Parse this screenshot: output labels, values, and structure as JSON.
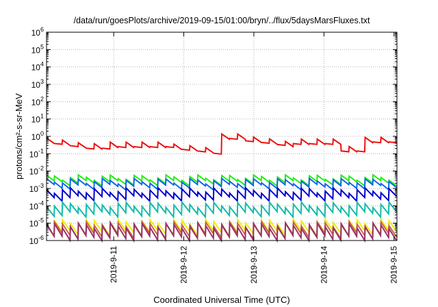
{
  "chart_data": {
    "type": "line",
    "title": "/data/run/goesPlots/archive/2019-09-15/01:00/bryn/../flux/5daysMarsFluxes.txt",
    "xlabel": "Coordinated Universal Time (UTC)",
    "ylabel": "protons/cm²-s-sr-MeV",
    "y_scale": "log",
    "ylim": [
      1e-06,
      1000000.0
    ],
    "y_ticks": [
      {
        "value": 1e-06,
        "base": "10",
        "exp": "-6"
      },
      {
        "value": 1e-05,
        "base": "10",
        "exp": "-5"
      },
      {
        "value": 0.0001,
        "base": "10",
        "exp": "-4"
      },
      {
        "value": 0.001,
        "base": "10",
        "exp": "-3"
      },
      {
        "value": 0.01,
        "base": "10",
        "exp": "-2"
      },
      {
        "value": 0.1,
        "base": "10",
        "exp": "-1"
      },
      {
        "value": 1,
        "base": "10",
        "exp": "0"
      },
      {
        "value": 10,
        "base": "10",
        "exp": "1"
      },
      {
        "value": 100,
        "base": "10",
        "exp": "2"
      },
      {
        "value": 1000,
        "base": "10",
        "exp": "3"
      },
      {
        "value": 10000,
        "base": "10",
        "exp": "4"
      },
      {
        "value": 100000,
        "base": "10",
        "exp": "5"
      },
      {
        "value": 1000000,
        "base": "10",
        "exp": "6"
      }
    ],
    "xlim": [
      "2019-09-10 01:00",
      "2019-09-15 01:00"
    ],
    "x_ticks": [
      {
        "value": "2019-09-11 00:00",
        "label": "2019-9-11"
      },
      {
        "value": "2019-09-12 00:00",
        "label": "2019-9-12"
      },
      {
        "value": "2019-09-13 00:00",
        "label": "2019-9-13"
      },
      {
        "value": "2019-09-14 00:00",
        "label": "2019-9-14"
      },
      {
        "value": "2019-09-15 00:00",
        "label": "2019-9-15"
      }
    ],
    "grid": true,
    "legend": "none",
    "series": [
      {
        "color": "#ee1111",
        "base": 0.25,
        "amp": 2.0,
        "pattern": "red"
      },
      {
        "color": "#22ee11",
        "base": 0.0045,
        "amp": 2.1,
        "pattern": "saw"
      },
      {
        "color": "#1166ee",
        "base": 0.0028,
        "amp": 2.2,
        "pattern": "saw"
      },
      {
        "color": "#0000cc",
        "base": 0.0008,
        "amp": 2.8,
        "pattern": "saw"
      },
      {
        "color": "#11bbaa",
        "base": 0.00012,
        "amp": 3.5,
        "pattern": "saw"
      },
      {
        "color": "#eeee00",
        "base": 1.2e-05,
        "amp": 4.2,
        "pattern": "saw"
      },
      {
        "color": "#cc6644",
        "base": 9e-06,
        "amp": 4.6,
        "pattern": "saw"
      },
      {
        "color": "#993366",
        "base": 7.5e-06,
        "amp": 5.2,
        "pattern": "saw"
      }
    ]
  }
}
